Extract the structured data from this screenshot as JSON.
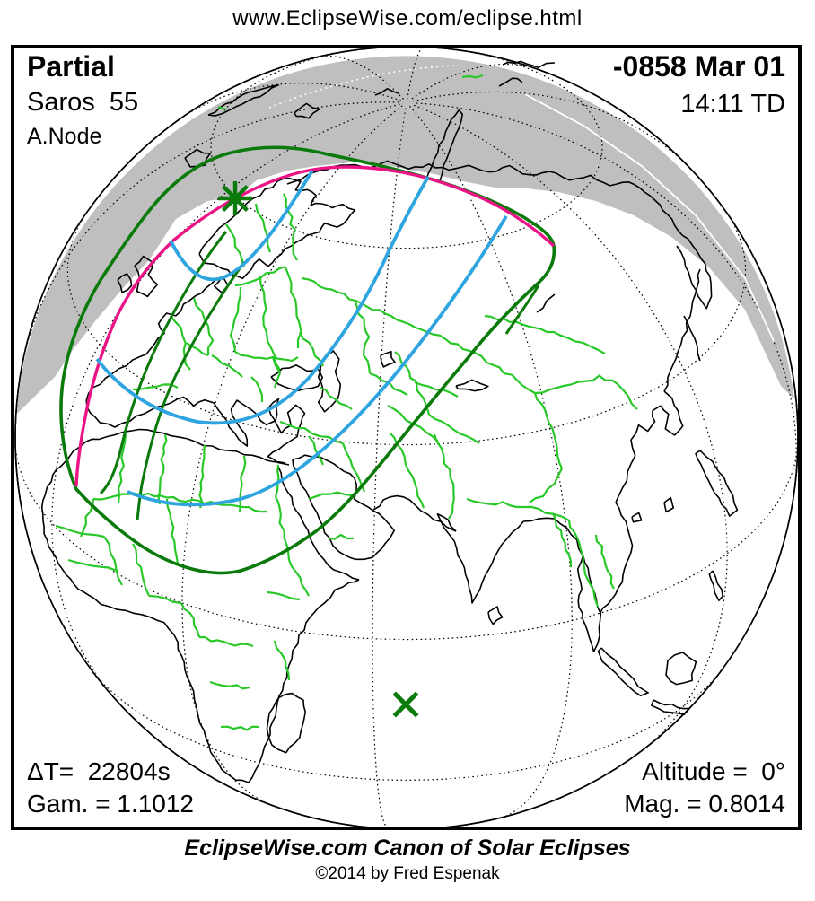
{
  "header": {
    "url": "www.EclipseWise.com/eclipse.html"
  },
  "info": {
    "eclipse_type": "Partial",
    "saros": "Saros  55",
    "node": "A.Node",
    "date": "-0858 Mar 01",
    "time": "14:11 TD",
    "delta_t": "ΔT=  22804s",
    "gamma": "Gam. = 1.1012",
    "altitude": "Altitude =  0°",
    "magnitude": "Mag. = 0.8014"
  },
  "footer": {
    "title": "EclipseWise.com Canon of Solar Eclipses",
    "copyright": "©2014 by Fred Espenak"
  },
  "map": {
    "colors": {
      "outline": "#000000",
      "country_border": "#28C828",
      "eclipse_limit_green": "#0A7A0A",
      "terminator_magenta": "#EB1487",
      "max_eclipse_blue": "#2FA5E0",
      "night_shading": "#BFBFBF",
      "graticule_over_shading": "#FFFFFF"
    },
    "markers": [
      {
        "name": "greatest-eclipse-star",
        "symbol": "star",
        "color": "#0A7A0A"
      },
      {
        "name": "subsolar-point",
        "symbol": "x",
        "color": "#0A7A0A"
      }
    ]
  }
}
